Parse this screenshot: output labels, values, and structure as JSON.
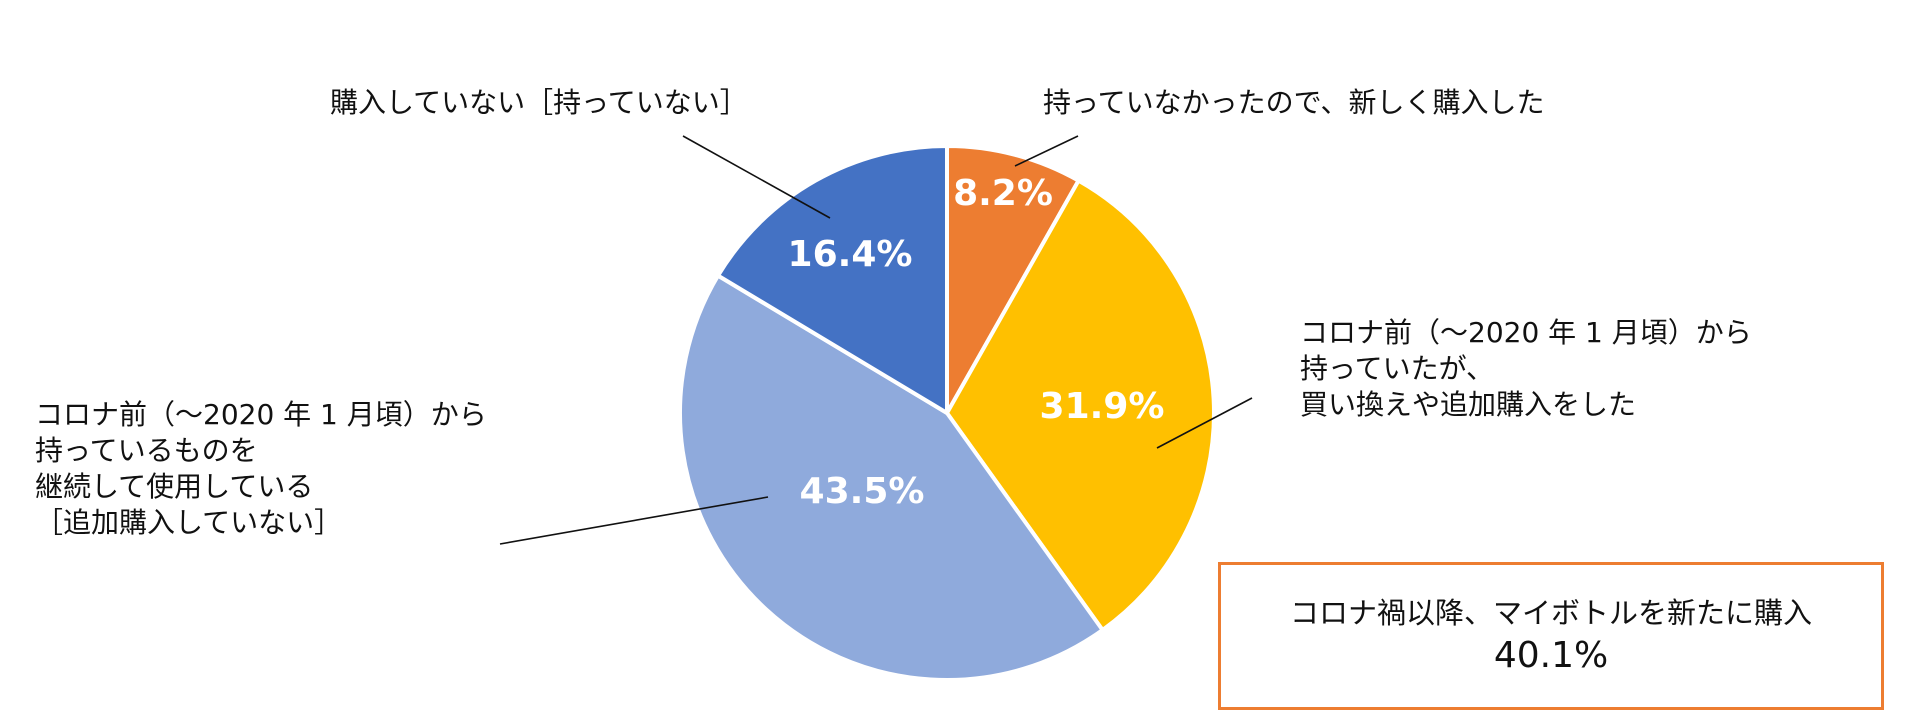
{
  "chart_data": {
    "type": "pie",
    "title": "",
    "slices": [
      {
        "label": "持っていなかったので、新しく購入した",
        "value": 8.2,
        "value_label": "8.2%",
        "color": "#ED7D31"
      },
      {
        "label": [
          "コロナ前（～2020 年 1 月頃）から",
          "持っていたが、",
          "買い換えや追加購入をした"
        ],
        "value": 31.9,
        "value_label": "31.9%",
        "color": "#FFC000"
      },
      {
        "label": [
          "コロナ前（～2020 年 1 月頃）から",
          "持っているものを",
          "継続して使用している",
          "［追加購入していない］"
        ],
        "value": 43.5,
        "value_label": "43.5%",
        "color": "#8FAADC"
      },
      {
        "label": "購入していない［持っていない］",
        "value": 16.4,
        "value_label": "16.4%",
        "color": "#4472C4"
      }
    ],
    "start_angle": "12 o'clock",
    "direction": "clockwise"
  },
  "summary": {
    "label": "コロナ禍以降、マイボトルを新たに購入",
    "value": "40.1%",
    "border_color": "#ED7D31"
  }
}
